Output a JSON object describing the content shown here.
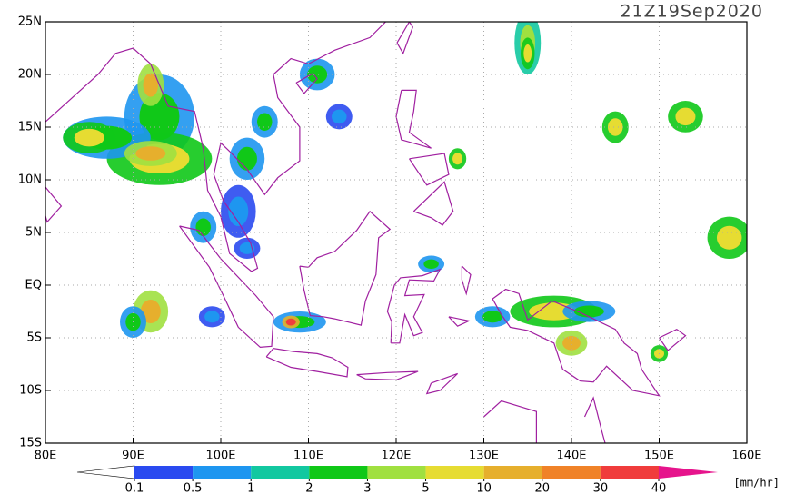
{
  "header": {
    "title": "21Z19Sep2020"
  },
  "map": {
    "lat_labels": [
      "25N",
      "20N",
      "15N",
      "10N",
      "5N",
      "EQ",
      "5S",
      "10S",
      "15S"
    ],
    "lon_labels": [
      "80E",
      "90E",
      "100E",
      "110E",
      "120E",
      "130E",
      "140E",
      "150E",
      "160E"
    ],
    "coast_color": "#a020a0",
    "grid": true
  },
  "colorbar": {
    "levels": [
      0.1,
      0.5,
      1,
      2,
      3,
      5,
      10,
      20,
      30,
      40
    ],
    "colors": [
      "#2a4af0",
      "#1e96f0",
      "#12c8a0",
      "#10c818",
      "#a0e040",
      "#e6dc32",
      "#e6af2d",
      "#f08228",
      "#f03c3c"
    ],
    "under_color": "#ffffff",
    "over_color": "#e6148c",
    "unit": "[mm/hr]"
  }
}
